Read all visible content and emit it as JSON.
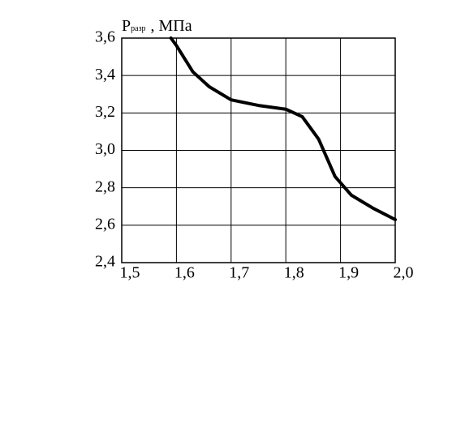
{
  "chart_data": {
    "type": "line",
    "ylabel": "P",
    "ylabel_subscript": "разр",
    "ylabel_unit": ", МПа",
    "x": [
      1.59,
      1.6,
      1.63,
      1.66,
      1.7,
      1.75,
      1.8,
      1.83,
      1.86,
      1.89,
      1.92,
      1.96,
      2.0
    ],
    "series": [
      {
        "color": "#000000",
        "values": [
          3.6,
          3.56,
          3.42,
          3.34,
          3.27,
          3.24,
          3.22,
          3.18,
          3.06,
          2.86,
          2.76,
          2.69,
          2.63
        ]
      }
    ],
    "xlim": [
      1.5,
      2.0
    ],
    "xticks": [
      {
        "value": 1.5,
        "label": "1,5"
      },
      {
        "value": 1.6,
        "label": "1,6"
      },
      {
        "value": 1.7,
        "label": "1,7"
      },
      {
        "value": 1.8,
        "label": "1,8"
      },
      {
        "value": 1.9,
        "label": "1,9"
      },
      {
        "value": 2.0,
        "label": "2,0"
      }
    ],
    "ylim": [
      2.4,
      3.6
    ],
    "yticks": [
      {
        "value": 2.4,
        "label": "2,4"
      },
      {
        "value": 2.6,
        "label": "2,6"
      },
      {
        "value": 2.8,
        "label": "2,8"
      },
      {
        "value": 3.0,
        "label": "3,0"
      },
      {
        "value": 3.2,
        "label": "3,2"
      },
      {
        "value": 3.4,
        "label": "3,4"
      },
      {
        "value": 3.6,
        "label": "3,6"
      }
    ],
    "grid": true
  }
}
